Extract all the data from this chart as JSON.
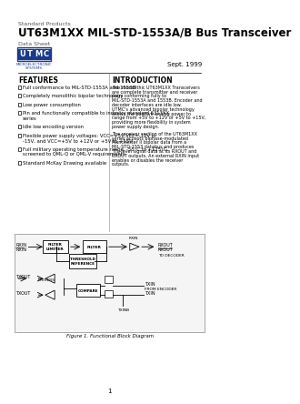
{
  "bg_color": "#ffffff",
  "title_small": "Standard Products",
  "title_main": "UT63M1XX MIL-STD-1553A/B Bus Transceiver",
  "title_sub": "Data Sheet",
  "date": "Sept. 1999",
  "utmc_letters": [
    "U",
    "T",
    "M",
    "C"
  ],
  "utmc_box_color": "#1a3a8a",
  "utmc_text_color": "#ffffff",
  "utmc_sub": "MICROELECTRONIC\nSYSTEMS",
  "features_title": "FEATURES",
  "features": [
    "Full conformance to MIL-STD-1553A and 1553B",
    "Completely monolithic bipolar technology",
    "Low power consumption",
    "Pin and functionally compatible to industry standard 6313XX\nseries",
    "Idle low encoding version",
    "Flexible power supply voltages: VCC=+5V,VEE=-12V or\n-15V, and VCC=+5V to +12V or +5V to +15V",
    "Full military operating temperature range, -55°C to +125°C,\nscreened to QML-Q or QML-V requirements",
    "Standard McKay Drawing available"
  ],
  "intro_title": "INTRODUCTION",
  "intro_text": "The monolithic UT63M1XX Transceivers are complete transmitter and receiver pairs conforming fully to MIL-STD-1553A and 1553B. Encoder and decoder interfaces are idle low. UTMC's advanced bipolar technology allows the positive analog power to range from +5V to +12V or +5V to +15V, providing more flexibility in system power supply design.\n\nThe receiver section of the UT63M1XX series accepts biphase-modulated Manchester II bipolar data from a MIL-STD-1553 databus and produces TTL-level signal data at its RXOUT and RXOUT outputs. An external RXIN input enables or disables the receiver outputs.",
  "fig_caption": "Figure 1. Functional Block Diagram",
  "page_num": "1"
}
